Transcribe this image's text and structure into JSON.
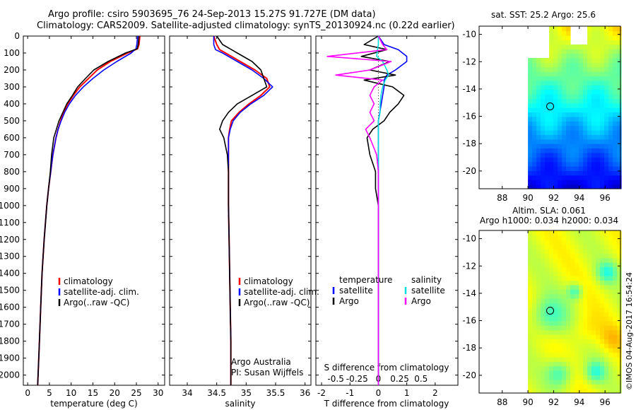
{
  "header": {
    "title_line1": "Argo profile: csiro 5903695_76 24-Sep-2013 15.27S 91.727E (DM data)",
    "title_line2": "Climatology: CARS2009. Satellite-adjusted climatology: synTS_20130924.nc (0.22d earlier)"
  },
  "depth_axis": {
    "ticks": [
      0,
      100,
      200,
      300,
      400,
      500,
      600,
      700,
      800,
      900,
      1000,
      1100,
      1200,
      1300,
      1400,
      1500,
      1600,
      1700,
      1800,
      1900,
      2000
    ],
    "range": [
      0,
      2060
    ],
    "reversed": true
  },
  "colors": {
    "climatology": "#ff0000",
    "satellite": "#0000ff",
    "argo": "#000000",
    "sal_satellite": "#00dddd",
    "sal_argo": "#ff00ff"
  },
  "chart_data": [
    {
      "type": "line",
      "name": "temperature-panel",
      "xlabel": "temperature (deg C)",
      "xlim": [
        -1,
        31.5
      ],
      "xticks": [
        0,
        5,
        10,
        15,
        20,
        25,
        30
      ],
      "legend": [
        "climatology",
        "satellite-adj. clim.",
        "Argo(..raw -QC)"
      ],
      "legend_position": "lower-middle",
      "depth": [
        0,
        50,
        75,
        100,
        150,
        200,
        250,
        300,
        350,
        400,
        450,
        500,
        550,
        600,
        700,
        800,
        900,
        1000,
        1200,
        1400,
        1600,
        1800,
        2000,
        2060
      ],
      "series": [
        {
          "name": "climatology",
          "values": [
            25.8,
            25.6,
            25.3,
            23.0,
            19.0,
            16.0,
            14.0,
            12.0,
            10.5,
            9.2,
            8.3,
            7.6,
            7.0,
            6.5,
            5.8,
            5.3,
            4.8,
            4.4,
            3.8,
            3.3,
            3.0,
            2.7,
            2.4,
            2.3
          ]
        },
        {
          "name": "satellite-adj. clim.",
          "values": [
            25.3,
            25.1,
            24.9,
            23.8,
            20.5,
            17.5,
            15.0,
            12.8,
            11.0,
            9.6,
            8.5,
            7.7,
            7.0,
            6.5,
            5.8,
            5.3,
            4.8,
            4.4,
            3.8,
            3.3,
            3.0,
            2.7,
            2.4,
            2.3
          ]
        },
        {
          "name": "Argo(..raw -QC)",
          "values": [
            25.6,
            25.4,
            25.2,
            22.5,
            18.5,
            15.2,
            13.3,
            11.5,
            10.3,
            9.0,
            8.1,
            7.2,
            6.6,
            6.0,
            5.5,
            5.2,
            4.8,
            4.4,
            3.8,
            3.3,
            3.0,
            2.7,
            2.4,
            2.3
          ]
        }
      ]
    },
    {
      "type": "line",
      "name": "salinity-panel",
      "xlabel": "salinity",
      "xlim": [
        33.7,
        36.1
      ],
      "xticks": [
        34,
        34.5,
        35,
        35.5,
        36
      ],
      "legend": [
        "climatology",
        "satellite-adj. clim.",
        "Argo(..raw -QC)"
      ],
      "legend_position": "lower-middle",
      "annotation_line1": "Argo Australia",
      "annotation_line2": "PI: Susan Wijffels",
      "depth": [
        0,
        50,
        80,
        100,
        150,
        200,
        250,
        300,
        350,
        400,
        450,
        500,
        550,
        600,
        650,
        700,
        800,
        1000,
        1200,
        1400,
        1600,
        1800,
        2000,
        2060
      ],
      "series": [
        {
          "name": "climatology",
          "values": [
            34.45,
            34.5,
            34.55,
            34.65,
            34.9,
            35.15,
            35.35,
            35.4,
            35.25,
            35.05,
            34.88,
            34.75,
            34.72,
            34.7,
            34.7,
            34.7,
            34.7,
            34.7,
            34.71,
            34.72,
            34.73,
            34.74,
            34.74,
            34.74
          ]
        },
        {
          "name": "satellite-adj. clim.",
          "values": [
            34.45,
            34.45,
            34.48,
            34.6,
            34.85,
            35.1,
            35.3,
            35.45,
            35.3,
            35.08,
            34.9,
            34.78,
            34.73,
            34.7,
            34.7,
            34.7,
            34.7,
            34.7,
            34.71,
            34.72,
            34.73,
            34.74,
            34.74,
            34.74
          ]
        },
        {
          "name": "Argo(..raw -QC)",
          "values": [
            34.5,
            34.6,
            34.75,
            34.85,
            35.1,
            35.25,
            35.3,
            35.35,
            35.1,
            34.85,
            34.7,
            34.6,
            34.55,
            34.62,
            34.65,
            34.68,
            34.7,
            34.7,
            34.71,
            34.72,
            34.73,
            34.74,
            34.74,
            34.74
          ]
        }
      ]
    },
    {
      "type": "line",
      "name": "difference-panel",
      "xlabel": "T difference from climatology",
      "top_label": "S difference from climatology",
      "xlim": [
        -2.2,
        2.8
      ],
      "xticks": [
        -2,
        -1,
        0,
        1,
        2
      ],
      "top_ticks": [
        "-0.5",
        "-0.25",
        "0",
        "0.25",
        "0.5"
      ],
      "legend_temperature": "temperature",
      "legend_salinity": "salinity",
      "legend_items": [
        "satellite",
        "Argo",
        "satellite",
        "Argo"
      ],
      "depth": [
        0,
        50,
        80,
        120,
        150,
        200,
        230,
        260,
        300,
        350,
        400,
        450,
        500,
        550,
        600,
        700,
        800,
        900,
        1000,
        1200,
        1400,
        1600,
        1800,
        2000,
        2060
      ],
      "series": [
        {
          "name": "T satellite",
          "values": [
            0.0,
            0.2,
            0.7,
            1.0,
            1.0,
            0.6,
            0.3,
            0.2,
            0.2,
            0.15,
            0.1,
            0.05,
            0.0,
            0.0,
            0.0,
            0.0,
            0.0,
            0.0,
            0.0,
            0.0,
            0.0,
            0.0,
            0.0,
            0.0,
            0.0
          ]
        },
        {
          "name": "T Argo",
          "values": [
            0.0,
            -0.5,
            0.3,
            -0.6,
            0.4,
            -0.3,
            0.6,
            -0.5,
            0.5,
            0.9,
            0.7,
            0.4,
            0.2,
            -0.2,
            -0.4,
            -0.3,
            -0.1,
            -0.1,
            0.0,
            0.0,
            0.0,
            0.0,
            0.0,
            0.0,
            0.0
          ]
        },
        {
          "name": "S satellite",
          "values": [
            0.0,
            0.0,
            -0.01,
            -0.02,
            0.05,
            0.1,
            0.12,
            0.08,
            0.05,
            0.03,
            0.02,
            0.02,
            0.0,
            0.0,
            0.0,
            0.0,
            0.0,
            0.0,
            0.0,
            0.0,
            0.0,
            0.0,
            0.0,
            0.0,
            0.0
          ]
        },
        {
          "name": "S Argo",
          "values": [
            0.0,
            0.05,
            0.1,
            -0.6,
            0.15,
            -0.1,
            -0.5,
            0.05,
            -0.05,
            -0.1,
            -0.05,
            -0.1,
            -0.05,
            -0.15,
            -0.1,
            -0.02,
            0.0,
            0.0,
            0.0,
            0.0,
            0.0,
            0.0,
            0.0,
            0.0,
            0.0
          ]
        }
      ]
    },
    {
      "type": "heatmap",
      "name": "sst-map",
      "title": "sat. SST: 25.2  Argo: 25.6",
      "xlim": [
        86.2,
        97.2
      ],
      "ylim": [
        -21.3,
        -9.4
      ],
      "xticks": [
        88,
        90,
        92,
        94,
        96
      ],
      "yticks": [
        -10,
        -12,
        -14,
        -16,
        -18,
        -20
      ],
      "argo_position": {
        "lon": 91.727,
        "lat": -15.27
      },
      "colormap": "jet"
    },
    {
      "type": "heatmap",
      "name": "sla-map",
      "title_line1": "Altim. SLA: 0.061",
      "title_line2": "Argo h1000: 0.034  h2000: 0.034",
      "xlim": [
        86.2,
        97.2
      ],
      "ylim": [
        -21.3,
        -9.4
      ],
      "xticks": [
        88,
        90,
        92,
        94,
        96
      ],
      "yticks": [
        -10,
        -12,
        -14,
        -16,
        -18,
        -20
      ],
      "argo_position": {
        "lon": 91.727,
        "lat": -15.27
      },
      "colormap": "jet"
    }
  ],
  "footer": {
    "credit": "©IMOS 04-Aug-2017 16:54:24"
  }
}
